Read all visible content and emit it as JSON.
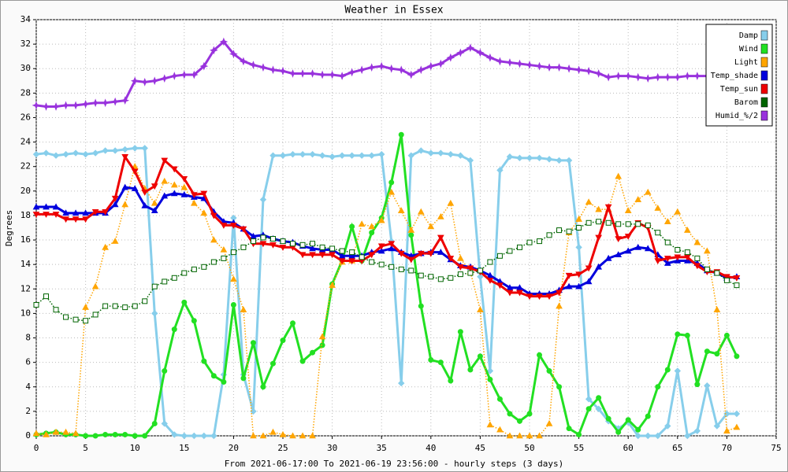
{
  "chart_data": {
    "type": "line",
    "title": "Weather in Essex",
    "x_label": "From 2021-06-17:00 To 2021-06-19 23:56:00 - hourly steps (3 days)",
    "y_label": "Degrees",
    "x": [
      0,
      1,
      2,
      3,
      4,
      5,
      6,
      7,
      8,
      9,
      10,
      11,
      12,
      13,
      14,
      15,
      16,
      17,
      18,
      19,
      20,
      21,
      22,
      23,
      24,
      25,
      26,
      27,
      28,
      29,
      30,
      31,
      32,
      33,
      34,
      35,
      36,
      37,
      38,
      39,
      40,
      41,
      42,
      43,
      44,
      45,
      46,
      47,
      48,
      49,
      50,
      51,
      52,
      53,
      54,
      55,
      56,
      57,
      58,
      59,
      60,
      61,
      62,
      63,
      64,
      65,
      66,
      67,
      68,
      69,
      70,
      71
    ],
    "xlim": [
      0,
      75
    ],
    "xticks": [
      0,
      5,
      10,
      15,
      20,
      25,
      30,
      35,
      40,
      45,
      50,
      55,
      60,
      65,
      70,
      75
    ],
    "ylim": [
      0,
      34
    ],
    "yticks": [
      0,
      2,
      4,
      6,
      8,
      10,
      12,
      14,
      16,
      18,
      20,
      22,
      24,
      26,
      28,
      30,
      32,
      34
    ],
    "grid": true,
    "legend": "top-right",
    "series": [
      {
        "name": "Damp",
        "color": "#87ceeb",
        "marker": "diamond",
        "dashed": false,
        "values": [
          23,
          23.1,
          22.9,
          23,
          23.1,
          23,
          23.1,
          23.3,
          23.3,
          23.4,
          23.5,
          23.5,
          10,
          1,
          0.1,
          0,
          0,
          0,
          0,
          5,
          17.8,
          5,
          2,
          19.3,
          22.9,
          22.9,
          23,
          23,
          23,
          22.9,
          22.8,
          22.9,
          22.9,
          22.9,
          22.9,
          23,
          15.9,
          4.3,
          22.9,
          23.3,
          23.1,
          23.1,
          23,
          22.9,
          22.5,
          13,
          5.3,
          21.7,
          22.8,
          22.7,
          22.7,
          22.7,
          22.6,
          22.5,
          22.5,
          15.4,
          3,
          2.2,
          1.2,
          0.6,
          1.1,
          0,
          0,
          0,
          0.8,
          5.3,
          0,
          0.4,
          4.1,
          0.8,
          1.8,
          1.8
        ]
      },
      {
        "name": "Wind",
        "color": "#22e022",
        "marker": "circle",
        "dashed": false,
        "values": [
          0.1,
          0.2,
          0.3,
          0.1,
          0.1,
          0,
          0,
          0.1,
          0.1,
          0.1,
          0,
          0,
          1,
          5.3,
          8.7,
          10.9,
          9.4,
          6.1,
          4.9,
          4.4,
          10.7,
          4.7,
          7.6,
          4,
          5.9,
          7.8,
          9.2,
          6.1,
          6.8,
          7.4,
          12.4,
          14.3,
          17.1,
          14.3,
          16.6,
          17.8,
          20.7,
          24.6,
          16.4,
          10.6,
          6.2,
          6,
          4.5,
          8.5,
          5.4,
          6.5,
          4.6,
          3,
          1.8,
          1.2,
          1.8,
          6.6,
          5.3,
          4,
          0.6,
          0.1,
          2.2,
          3.1,
          1.4,
          0.3,
          1.3,
          0.5,
          1.6,
          4,
          5.4,
          8.3,
          8.2,
          4.2,
          6.9,
          6.7,
          8.2,
          6.5
        ]
      },
      {
        "name": "Light",
        "color": "#ffa500",
        "marker": "triangle",
        "dashed": true,
        "values": [
          0.2,
          0.1,
          0.3,
          0.3,
          0.2,
          10.5,
          12.2,
          15.4,
          15.9,
          18.9,
          22,
          20.2,
          19,
          20.8,
          20.5,
          20.3,
          19,
          18.2,
          16,
          15.2,
          12.8,
          10.3,
          0,
          0,
          0.3,
          0.1,
          0,
          0,
          0,
          8.1,
          12.3,
          14.2,
          14.3,
          17.3,
          17.1,
          17.6,
          19.9,
          18.4,
          16.8,
          18.3,
          17.1,
          17.9,
          19,
          14.5,
          13.4,
          10.3,
          0.9,
          0.5,
          0,
          0,
          0,
          0,
          1,
          10.6,
          16.6,
          17.7,
          19.1,
          18.5,
          18.5,
          21.2,
          18.4,
          19.3,
          19.9,
          18.6,
          17.5,
          18.3,
          16.8,
          15.8,
          15.1,
          10.3,
          0.4,
          0.7
        ]
      },
      {
        "name": "Temp_shade",
        "color": "#0000dd",
        "marker": "triangle",
        "dashed": false,
        "values": [
          18.7,
          18.7,
          18.7,
          18.2,
          18.2,
          18.2,
          18.2,
          18.2,
          18.9,
          20.3,
          20.2,
          18.8,
          18.4,
          19.6,
          19.8,
          19.7,
          19.5,
          19.4,
          18.3,
          17.5,
          17.4,
          16.9,
          16.3,
          16.4,
          16.1,
          15.9,
          15.8,
          15.5,
          15.3,
          15.2,
          15.2,
          14.7,
          14.7,
          14.7,
          15,
          15.1,
          15.3,
          15,
          14.7,
          14.9,
          15,
          15,
          14.4,
          13.9,
          13.8,
          13.5,
          13.1,
          12.6,
          12.1,
          12.1,
          11.6,
          11.6,
          11.6,
          11.9,
          12.2,
          12.2,
          12.6,
          13.8,
          14.5,
          14.8,
          15.1,
          15.4,
          15.3,
          14.8,
          14.1,
          14.3,
          14.3,
          14.1,
          13.5,
          13.3,
          12.9,
          13
        ]
      },
      {
        "name": "Temp_sun",
        "color": "#ee0000",
        "marker": "down-triangle",
        "dashed": false,
        "values": [
          18.1,
          18.1,
          18.1,
          17.7,
          17.7,
          17.7,
          18.3,
          18.3,
          19.4,
          22.8,
          21.6,
          19.9,
          20.4,
          22.5,
          21.8,
          21,
          19.7,
          19.8,
          18,
          17.2,
          17.2,
          16.9,
          15.7,
          15.7,
          15.6,
          15.4,
          15.4,
          14.8,
          14.8,
          14.8,
          14.8,
          14.3,
          14.3,
          14.3,
          14.8,
          15.5,
          15.7,
          14.9,
          14.4,
          14.9,
          14.9,
          16.2,
          14.5,
          13.8,
          13.7,
          13.4,
          12.7,
          12.3,
          11.7,
          11.7,
          11.4,
          11.4,
          11.4,
          11.7,
          13.1,
          13.2,
          13.7,
          16.2,
          18.7,
          16.1,
          16.3,
          17.4,
          17,
          14.3,
          14.5,
          14.6,
          14.6,
          13.9,
          13.4,
          13.4,
          13,
          12.9
        ]
      },
      {
        "name": "Barom",
        "color": "#006400",
        "marker": "square",
        "dashed": true,
        "values": [
          10.7,
          11.4,
          10.3,
          9.7,
          9.5,
          9.4,
          9.9,
          10.6,
          10.6,
          10.5,
          10.6,
          11,
          12.2,
          12.6,
          12.9,
          13.3,
          13.6,
          13.8,
          14.2,
          14.5,
          15,
          15.4,
          15.9,
          16.2,
          16.1,
          15.9,
          15.7,
          15.6,
          15.7,
          15.4,
          15.3,
          15.1,
          15,
          14.6,
          14.2,
          14,
          13.8,
          13.6,
          13.5,
          13.1,
          13,
          12.8,
          12.9,
          13.2,
          13.3,
          13.5,
          14.2,
          14.7,
          15.1,
          15.4,
          15.8,
          15.9,
          16.4,
          16.8,
          16.7,
          17,
          17.4,
          17.5,
          17.4,
          17.3,
          17.3,
          17.3,
          17.2,
          16.6,
          15.8,
          15.2,
          15,
          14.5,
          13.6,
          13.3,
          12.7,
          12.3
        ]
      },
      {
        "name": "Humid_%/2",
        "color": "#9933dd",
        "marker": "star",
        "dashed": false,
        "values": [
          27,
          26.9,
          26.9,
          27,
          27,
          27.1,
          27.2,
          27.2,
          27.3,
          27.4,
          29,
          28.9,
          29,
          29.2,
          29.4,
          29.5,
          29.5,
          30.2,
          31.5,
          32.2,
          31.2,
          30.6,
          30.3,
          30.1,
          29.9,
          29.8,
          29.6,
          29.6,
          29.6,
          29.5,
          29.5,
          29.4,
          29.7,
          29.9,
          30.1,
          30.2,
          30,
          29.9,
          29.5,
          29.9,
          30.2,
          30.4,
          30.9,
          31.3,
          31.7,
          31.3,
          30.9,
          30.6,
          30.5,
          30.4,
          30.3,
          30.2,
          30.1,
          30.1,
          30,
          29.9,
          29.8,
          29.6,
          29.3,
          29.4,
          29.4,
          29.3,
          29.2,
          29.3,
          29.3,
          29.3,
          29.4,
          29.4,
          29.4,
          29.4,
          29.3,
          29.2
        ]
      }
    ]
  }
}
